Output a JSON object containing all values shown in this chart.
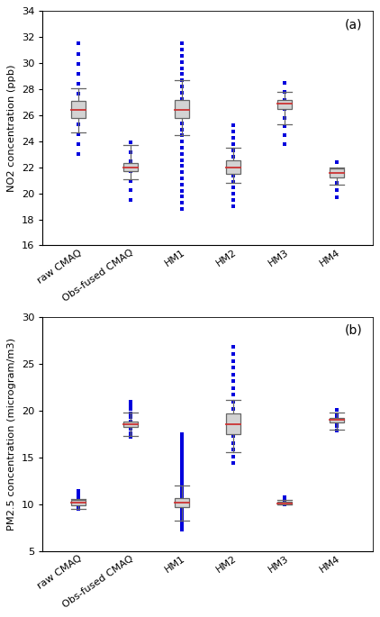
{
  "panel_a": {
    "label": "(a)",
    "ylabel": "NO2 concentration (ppb)",
    "ylim": [
      16,
      34
    ],
    "yticks": [
      16,
      18,
      20,
      22,
      24,
      26,
      28,
      30,
      32,
      34
    ],
    "categories": [
      "raw CMAQ",
      "Obs-fused CMAQ",
      "HM1",
      "HM2",
      "HM3",
      "HM4"
    ],
    "boxes": [
      {
        "q1": 25.8,
        "median": 26.4,
        "q3": 27.1,
        "whislo": 24.7,
        "whishi": 28.1,
        "dots_min": 23.0,
        "dots_max": 31.5,
        "dot_count": 12
      },
      {
        "q1": 21.7,
        "median": 22.0,
        "q3": 22.3,
        "whislo": 21.1,
        "whishi": 23.7,
        "dots_min": 19.5,
        "dots_max": 23.9,
        "dot_count": 7
      },
      {
        "q1": 25.8,
        "median": 26.4,
        "q3": 27.2,
        "whislo": 24.5,
        "whishi": 28.7,
        "dots_min": 18.8,
        "dots_max": 31.5,
        "dot_count": 28
      },
      {
        "q1": 21.5,
        "median": 22.0,
        "q3": 22.5,
        "whislo": 20.8,
        "whishi": 23.5,
        "dots_min": 19.0,
        "dots_max": 25.2,
        "dot_count": 14
      },
      {
        "q1": 26.5,
        "median": 26.9,
        "q3": 27.2,
        "whislo": 25.3,
        "whishi": 27.8,
        "dots_min": 23.8,
        "dots_max": 28.5,
        "dot_count": 8
      },
      {
        "q1": 21.2,
        "median": 21.6,
        "q3": 21.9,
        "whislo": 20.7,
        "whishi": 22.0,
        "dots_min": 19.7,
        "dots_max": 22.4,
        "dot_count": 6
      }
    ]
  },
  "panel_b": {
    "label": "(b)",
    "ylabel": "PM2.5 concentration (microgram/m3)",
    "ylim": [
      5,
      30
    ],
    "yticks": [
      5,
      10,
      15,
      20,
      25,
      30
    ],
    "categories": [
      "raw CMAQ",
      "Obs-fused CMAQ",
      "HM1",
      "HM2",
      "HM3",
      "HM4"
    ],
    "boxes": [
      {
        "q1": 9.9,
        "median": 10.2,
        "q3": 10.5,
        "whislo": 9.5,
        "whishi": 10.6,
        "dots_min": 9.5,
        "dots_max": 11.5,
        "dot_count": 8
      },
      {
        "q1": 18.3,
        "median": 18.6,
        "q3": 18.9,
        "whislo": 17.3,
        "whishi": 19.8,
        "dots_min": 17.2,
        "dots_max": 21.0,
        "dot_count": 10
      },
      {
        "q1": 9.7,
        "median": 10.2,
        "q3": 10.7,
        "whislo": 8.3,
        "whishi": 12.0,
        "dots_min": 7.3,
        "dots_max": 17.5,
        "dot_count": 32
      },
      {
        "q1": 17.5,
        "median": 18.6,
        "q3": 19.7,
        "whislo": 15.6,
        "whishi": 21.2,
        "dots_min": 14.4,
        "dots_max": 26.8,
        "dot_count": 18
      },
      {
        "q1": 10.0,
        "median": 10.1,
        "q3": 10.3,
        "whislo": 10.0,
        "whishi": 10.5,
        "dots_min": 10.0,
        "dots_max": 10.8,
        "dot_count": 4
      },
      {
        "q1": 18.8,
        "median": 19.0,
        "q3": 19.2,
        "whislo": 18.0,
        "whishi": 19.8,
        "dots_min": 17.9,
        "dots_max": 20.1,
        "dot_count": 6
      }
    ]
  },
  "box_facecolor": "#d3d3d3",
  "box_edgecolor": "#666666",
  "median_color": "#cc3333",
  "whisker_color": "#666666",
  "flier_color": "#0000dd",
  "flier_marker": "s",
  "flier_size": 2.8,
  "box_width": 0.28,
  "cap_ratio": 0.5,
  "lw": 0.9
}
